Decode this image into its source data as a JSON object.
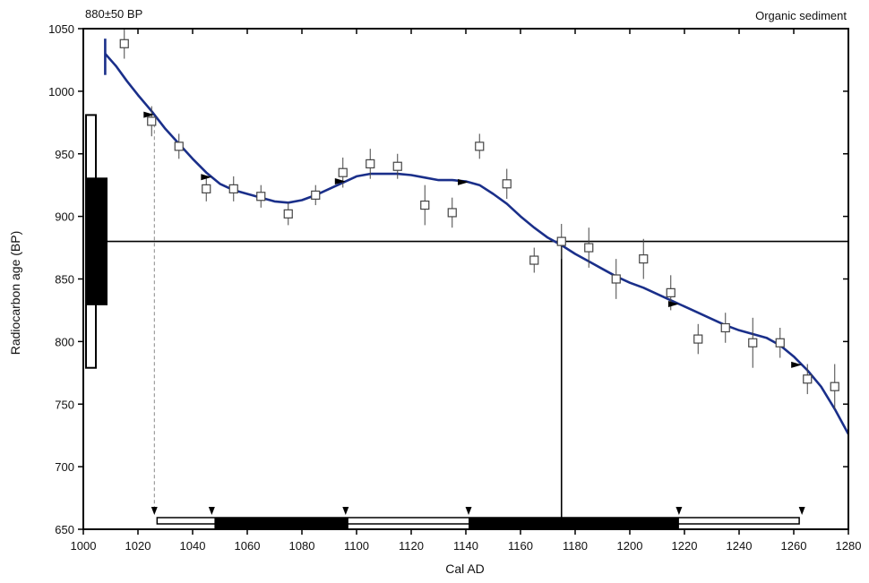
{
  "chart_data": {
    "type": "scatter",
    "top_left_label": "880±50 BP",
    "top_right_label": "Organic sediment",
    "xlabel": "Cal AD",
    "ylabel": "Radiocarbon age (BP)",
    "xlim": [
      1000,
      1280
    ],
    "ylim": [
      650,
      1050
    ],
    "x_ticks": [
      1000,
      1020,
      1040,
      1060,
      1080,
      1100,
      1120,
      1140,
      1160,
      1180,
      1200,
      1220,
      1240,
      1260,
      1280
    ],
    "y_ticks": [
      650,
      700,
      750,
      800,
      850,
      900,
      950,
      1000,
      1050
    ],
    "grid": false,
    "measurement": {
      "age": 880,
      "error": 50,
      "intercept_year": 1175
    },
    "colors": {
      "curve": "#1a2f8a",
      "axes": "#000000",
      "points": "#555555"
    },
    "calibration_curve": {
      "x": [
        1008,
        1012,
        1016,
        1020,
        1025,
        1030,
        1035,
        1040,
        1045,
        1050,
        1055,
        1060,
        1065,
        1070,
        1075,
        1080,
        1085,
        1090,
        1095,
        1100,
        1105,
        1110,
        1115,
        1120,
        1125,
        1130,
        1135,
        1140,
        1145,
        1150,
        1155,
        1160,
        1165,
        1170,
        1175,
        1180,
        1185,
        1190,
        1195,
        1200,
        1205,
        1210,
        1215,
        1220,
        1225,
        1230,
        1235,
        1240,
        1245,
        1250,
        1255,
        1260,
        1265,
        1270,
        1275,
        1280
      ],
      "y": [
        1030,
        1020,
        1008,
        997,
        984,
        970,
        958,
        946,
        935,
        926,
        921,
        918,
        915,
        912,
        911,
        913,
        917,
        922,
        927,
        932,
        934,
        934,
        934,
        933,
        931,
        929,
        929,
        928,
        925,
        918,
        910,
        900,
        891,
        883,
        877,
        870,
        864,
        858,
        852,
        847,
        843,
        838,
        833,
        828,
        823,
        818,
        813,
        809,
        806,
        803,
        797,
        788,
        777,
        764,
        746,
        726
      ]
    },
    "data_points": {
      "x": [
        1015,
        1025,
        1035,
        1045,
        1055,
        1065,
        1075,
        1085,
        1095,
        1105,
        1115,
        1125,
        1135,
        1145,
        1155,
        1165,
        1175,
        1185,
        1195,
        1205,
        1215,
        1225,
        1235,
        1245,
        1255,
        1265,
        1275
      ],
      "y": [
        1038,
        976,
        956,
        922,
        922,
        916,
        902,
        917,
        935,
        942,
        940,
        909,
        903,
        956,
        926,
        865,
        880,
        875,
        850,
        866,
        839,
        802,
        811,
        799,
        799,
        770,
        764
      ],
      "err": [
        12,
        12,
        10,
        10,
        10,
        9,
        9,
        8,
        12,
        12,
        10,
        16,
        12,
        10,
        12,
        10,
        14,
        16,
        16,
        16,
        14,
        12,
        12,
        20,
        12,
        12,
        18
      ]
    },
    "wiggle_arrows": {
      "x": [
        1026,
        1047,
        1096,
        1141,
        1218,
        1263
      ]
    },
    "probability_age_bars": {
      "outer": [
        779,
        981
      ],
      "inner": [
        829,
        931
      ]
    },
    "calendar_ranges": {
      "outer": [
        [
          1027,
          1262
        ]
      ],
      "inner": [
        [
          1048,
          1097
        ],
        [
          1141,
          1218
        ]
      ]
    }
  }
}
